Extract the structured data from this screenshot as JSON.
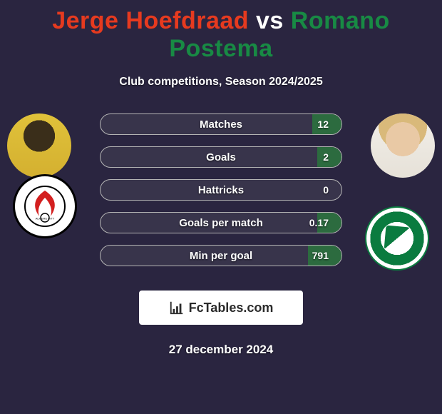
{
  "title": {
    "player1": "Jerge Hoefdraad",
    "vs": "vs",
    "player2": "Romano Postema",
    "player1_color": "#e63a1f",
    "vs_color": "#ffffff",
    "player2_color": "#188a44"
  },
  "subtitle": "Club competitions, Season 2024/2025",
  "row_style": {
    "border_color": "#b4b4b4",
    "bg_tint": "rgba(120,120,130,0.18)",
    "left_fill_color": "#a23028",
    "right_fill_color": "#2c6b3f"
  },
  "stats": [
    {
      "label": "Matches",
      "value_right": "12",
      "left_pct": 0,
      "right_pct": 12
    },
    {
      "label": "Goals",
      "value_right": "2",
      "left_pct": 0,
      "right_pct": 10
    },
    {
      "label": "Hattricks",
      "value_right": "0",
      "left_pct": 0,
      "right_pct": 0
    },
    {
      "label": "Goals per match",
      "value_right": "0.17",
      "left_pct": 0,
      "right_pct": 10
    },
    {
      "label": "Min per goal",
      "value_right": "791",
      "left_pct": 0,
      "right_pct": 14
    }
  ],
  "footer_brand": "FcTables.com",
  "date": "27 december 2024",
  "background_color": "#2a2540",
  "players": {
    "left": {
      "name": "Jerge Hoefdraad",
      "club": "Almere City"
    },
    "right": {
      "name": "Romano Postema",
      "club": "FC Groningen"
    }
  }
}
